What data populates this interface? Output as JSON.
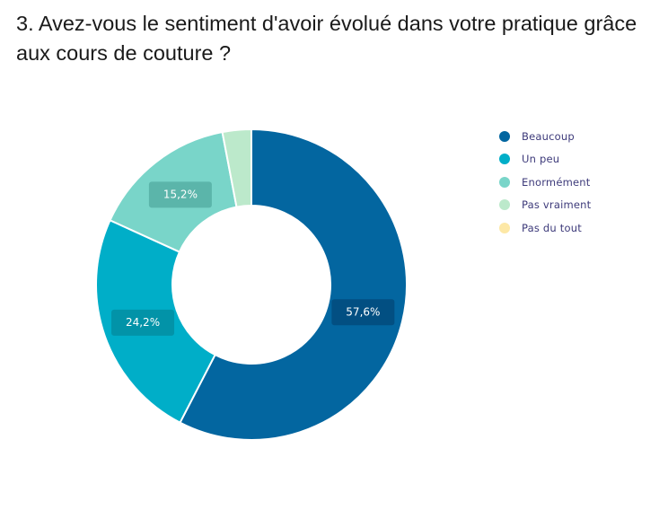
{
  "chart_data": {
    "type": "pie",
    "donut": true,
    "title": "3. Avez-vous le sentiment d'avoir évolué dans votre pratique grâce aux cours de couture ?",
    "categories": [
      "Beaucoup",
      "Un peu",
      "Enormément",
      "Pas vraiment",
      "Pas du tout"
    ],
    "values": [
      57.6,
      24.2,
      15.2,
      3.0,
      0
    ],
    "data_labels": [
      "57,6%",
      "24,2%",
      "15,2%",
      "",
      ""
    ],
    "colors": [
      "#0366a0",
      "#00aec8",
      "#79d5c9",
      "#bce9cb",
      "#fde8a6"
    ],
    "label_box_colors": [
      "#024f82",
      "#0293a8",
      "#5bb5aa",
      "",
      ""
    ],
    "legend_position": "right"
  }
}
